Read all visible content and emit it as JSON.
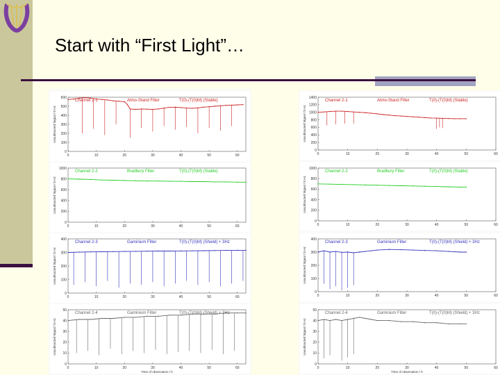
{
  "slide": {
    "title": "Start with “First Light”…"
  },
  "logo": {
    "icon": "lyre-logo-icon",
    "colors": {
      "accent": "#7b3fa0",
      "gold": "#d9c060"
    }
  },
  "theme": {
    "background": "#fffee9",
    "sidebar": "#c9c79b",
    "rule": "#3a1040",
    "rule_accent": "#a3a3c2"
  },
  "chart_data": [
    {
      "type": "line",
      "panel": "left-row1",
      "color": "#cc2222",
      "title": "Channel 2-1",
      "subtitle": "Atmo-Stand Filter",
      "note": "T(0)-(T(0)M) (Stable)",
      "ylabel": "Unsubtracted Signal / h Hz",
      "x": [
        0,
        2,
        4,
        6,
        8,
        10,
        12,
        14,
        16,
        18,
        20,
        21,
        22,
        24,
        26,
        28,
        30,
        32,
        34,
        36,
        38,
        40,
        42,
        44,
        46,
        48,
        50,
        52,
        54,
        56,
        58,
        60,
        62
      ],
      "y": [
        575,
        580,
        590,
        595,
        590,
        580,
        575,
        570,
        560,
        555,
        550,
        520,
        470,
        465,
        470,
        468,
        465,
        470,
        480,
        488,
        490,
        485,
        480,
        478,
        482,
        490,
        495,
        500,
        505,
        510,
        512,
        515,
        518
      ],
      "dips": [
        {
          "x": 5,
          "y": 200
        },
        {
          "x": 9,
          "y": 250
        },
        {
          "x": 13,
          "y": 180
        },
        {
          "x": 17,
          "y": 300
        },
        {
          "x": 22,
          "y": 150
        },
        {
          "x": 26,
          "y": 260
        },
        {
          "x": 30,
          "y": 220
        },
        {
          "x": 34,
          "y": 280
        },
        {
          "x": 38,
          "y": 240
        },
        {
          "x": 42,
          "y": 270
        },
        {
          "x": 46,
          "y": 200
        },
        {
          "x": 50,
          "y": 260
        },
        {
          "x": 54,
          "y": 230
        },
        {
          "x": 58,
          "y": 280
        }
      ],
      "xlim": [
        0,
        63
      ],
      "ylim": [
        0,
        600
      ],
      "xticks": [
        "0",
        "10",
        "20",
        "30",
        "40",
        "50",
        "60"
      ],
      "yticks": [
        "0",
        "100",
        "200",
        "300",
        "400",
        "500",
        "600"
      ]
    },
    {
      "type": "line",
      "panel": "right-row1",
      "color": "#cc2222",
      "title": "Channel 2-1",
      "subtitle": "Atmo-Stand Filter",
      "note": "T(0)-(T(0)M) (Stable)",
      "ylabel": "Unsubtracted Signal / h Hz",
      "x": [
        0,
        2,
        4,
        6,
        8,
        10,
        12,
        14,
        16,
        18,
        20,
        22,
        24,
        26,
        28,
        30,
        32,
        34,
        36,
        38,
        40,
        42,
        44,
        46,
        48,
        50
      ],
      "y": [
        1000,
        1010,
        1020,
        1030,
        1030,
        1020,
        1010,
        1000,
        990,
        975,
        960,
        940,
        925,
        910,
        900,
        890,
        880,
        870,
        860,
        850,
        845,
        840,
        835,
        830,
        830,
        830
      ],
      "dips": [
        {
          "x": 3,
          "y": 650
        },
        {
          "x": 6,
          "y": 680
        },
        {
          "x": 9,
          "y": 700
        },
        {
          "x": 12,
          "y": 700
        },
        {
          "x": 40,
          "y": 560
        },
        {
          "x": 41,
          "y": 600
        },
        {
          "x": 42,
          "y": 580
        }
      ],
      "xlim": [
        0,
        60
      ],
      "ylim": [
        0,
        1400
      ],
      "xticks": [
        "0",
        "10",
        "20",
        "30",
        "40",
        "50",
        "60"
      ],
      "yticks": [
        "0",
        "200",
        "400",
        "600",
        "800",
        "1000",
        "1200",
        "1400"
      ]
    },
    {
      "type": "line",
      "panel": "left-row2",
      "color": "#22cc22",
      "title": "Channel 2-2",
      "subtitle": "Bradbury Filter",
      "note": "T(0)-(T(0)M) (Stable)",
      "ylabel": "Unsubtracted Signal / h Hz",
      "x": [
        0,
        4,
        8,
        12,
        16,
        20,
        24,
        28,
        32,
        36,
        40,
        44,
        48,
        52,
        56,
        60,
        63
      ],
      "y": [
        800,
        795,
        790,
        780,
        775,
        770,
        765,
        760,
        760,
        755,
        755,
        750,
        750,
        745,
        745,
        740,
        740
      ],
      "dips": [],
      "xlim": [
        0,
        63
      ],
      "ylim": [
        0,
        1000
      ],
      "xticks": [
        "0",
        "10",
        "20",
        "30",
        "40",
        "50",
        "60"
      ],
      "yticks": [
        "0",
        "200",
        "400",
        "600",
        "800",
        "1000"
      ]
    },
    {
      "type": "line",
      "panel": "right-row2",
      "color": "#22cc22",
      "title": "Channel 2-2",
      "subtitle": "Bradbury Filter",
      "note": "T(0)-(T(0)M) (Stable)",
      "ylabel": "Unsubtracted Signal / h Hz",
      "x": [
        0,
        4,
        8,
        12,
        16,
        20,
        24,
        28,
        32,
        36,
        40,
        44,
        48,
        50
      ],
      "y": [
        700,
        695,
        690,
        685,
        680,
        675,
        670,
        665,
        660,
        655,
        650,
        645,
        640,
        640
      ],
      "dips": [],
      "xlim": [
        0,
        60
      ],
      "ylim": [
        0,
        1000
      ],
      "xticks": [
        "0",
        "10",
        "20",
        "30",
        "40",
        "50",
        "60"
      ],
      "yticks": [
        "0",
        "200",
        "400",
        "600",
        "800",
        "1000"
      ]
    },
    {
      "type": "line",
      "panel": "left-row3",
      "color": "#3333bb",
      "title": "Channel 2-3",
      "subtitle": "Gaminium Filter",
      "note": "T(0)-(T(0)M) (Shield) + 3Hz",
      "ylabel": "Unsubtracted Signal / h Hz",
      "x": [
        0,
        4,
        8,
        12,
        16,
        20,
        24,
        28,
        32,
        36,
        40,
        44,
        48,
        52,
        56,
        60,
        63
      ],
      "y": [
        300,
        302,
        304,
        305,
        306,
        307,
        308,
        309,
        310,
        310,
        311,
        312,
        313,
        314,
        315,
        316,
        316
      ],
      "dips": [
        {
          "x": 2,
          "y": 60
        },
        {
          "x": 6,
          "y": 80
        },
        {
          "x": 10,
          "y": 50
        },
        {
          "x": 14,
          "y": 90
        },
        {
          "x": 18,
          "y": 40
        },
        {
          "x": 22,
          "y": 70
        },
        {
          "x": 26,
          "y": 60
        },
        {
          "x": 30,
          "y": 80
        },
        {
          "x": 34,
          "y": 50
        },
        {
          "x": 38,
          "y": 70
        },
        {
          "x": 42,
          "y": 90
        },
        {
          "x": 46,
          "y": 60
        },
        {
          "x": 50,
          "y": 80
        },
        {
          "x": 54,
          "y": 50
        },
        {
          "x": 58,
          "y": 70
        },
        {
          "x": 62,
          "y": 90
        }
      ],
      "xlim": [
        0,
        63
      ],
      "ylim": [
        0,
        400
      ],
      "xticks": [
        "0",
        "10",
        "20",
        "30",
        "40",
        "50",
        "60"
      ],
      "yticks": [
        "0",
        "100",
        "200",
        "300",
        "400"
      ]
    },
    {
      "type": "line",
      "panel": "right-row3",
      "color": "#3333bb",
      "title": "Channel 2-3",
      "subtitle": "Gaminium Filter",
      "note": "T(0)-(T(0)M) (Shield) + 3Hz",
      "ylabel": "Unsubtracted Signal / h Hz",
      "x": [
        0,
        2,
        4,
        6,
        8,
        10,
        12,
        14,
        16,
        18,
        20,
        24,
        28,
        32,
        36,
        40,
        44,
        48,
        50
      ],
      "y": [
        300,
        310,
        300,
        305,
        298,
        300,
        295,
        300,
        305,
        310,
        315,
        320,
        318,
        315,
        312,
        310,
        305,
        300,
        300
      ],
      "dips": [
        {
          "x": 2,
          "y": 60
        },
        {
          "x": 4,
          "y": 20
        },
        {
          "x": 6,
          "y": 40
        },
        {
          "x": 8,
          "y": 10
        },
        {
          "x": 10,
          "y": 30
        },
        {
          "x": 12,
          "y": 50
        }
      ],
      "xlim": [
        0,
        60
      ],
      "ylim": [
        0,
        400
      ],
      "xticks": [
        "0",
        "10",
        "20",
        "30",
        "40",
        "50",
        "60"
      ],
      "yticks": [
        "0",
        "100",
        "200",
        "300",
        "400"
      ]
    },
    {
      "type": "line",
      "panel": "left-row4",
      "color": "#666666",
      "title": "Channel 2-4",
      "subtitle": "Gaminium Filter",
      "note": "T(0)-(T(0)M) (Shield) + 3Hz",
      "ylabel": "Unsubtracted Signal / h Hz",
      "xlabel": "Time of observation / h",
      "x": [
        0,
        4,
        8,
        12,
        16,
        20,
        24,
        28,
        32,
        36,
        40,
        44,
        48,
        52,
        56,
        60,
        63
      ],
      "y": [
        40,
        41,
        41,
        42,
        42,
        43,
        43,
        44,
        44,
        45,
        45,
        46,
        46,
        46,
        47,
        47,
        47
      ],
      "dips": [
        {
          "x": 3,
          "y": 10
        },
        {
          "x": 7,
          "y": 12
        },
        {
          "x": 11,
          "y": 8
        },
        {
          "x": 15,
          "y": 14
        },
        {
          "x": 19,
          "y": 9
        },
        {
          "x": 23,
          "y": 12
        },
        {
          "x": 27,
          "y": 10
        },
        {
          "x": 31,
          "y": 13
        },
        {
          "x": 35,
          "y": 9
        },
        {
          "x": 39,
          "y": 11
        },
        {
          "x": 43,
          "y": 12
        },
        {
          "x": 47,
          "y": 10
        },
        {
          "x": 51,
          "y": 13
        },
        {
          "x": 55,
          "y": 9
        },
        {
          "x": 59,
          "y": 12
        }
      ],
      "xlim": [
        0,
        63
      ],
      "ylim": [
        0,
        50
      ],
      "xticks": [
        "0",
        "10",
        "20",
        "30",
        "40",
        "50",
        "60"
      ],
      "yticks": [
        "0",
        "10",
        "20",
        "30",
        "40",
        "50"
      ]
    },
    {
      "type": "line",
      "panel": "right-row4",
      "color": "#666666",
      "title": "Channel 2-4",
      "subtitle": "Gaminium Filter",
      "note": "T(0)-(T(0)M) (Shield) + 3Hz",
      "ylabel": "Unsubtracted Signal / h Hz",
      "xlabel": "Time of observation / h",
      "x": [
        0,
        2,
        4,
        6,
        8,
        10,
        12,
        14,
        16,
        18,
        20,
        24,
        28,
        32,
        36,
        40,
        44,
        48,
        50
      ],
      "y": [
        40,
        41,
        40,
        41,
        40,
        41,
        42,
        43,
        42,
        41,
        40,
        40,
        39,
        39,
        38,
        38,
        37,
        37,
        37
      ],
      "dips": [
        {
          "x": 2,
          "y": 5
        },
        {
          "x": 4,
          "y": 8
        },
        {
          "x": 8,
          "y": 3
        },
        {
          "x": 10,
          "y": 6
        },
        {
          "x": 12,
          "y": 9
        }
      ],
      "xlim": [
        0,
        60
      ],
      "ylim": [
        0,
        50
      ],
      "xticks": [
        "0",
        "10",
        "20",
        "30",
        "40",
        "50",
        "60"
      ],
      "yticks": [
        "0",
        "10",
        "20",
        "30",
        "40",
        "50"
      ]
    }
  ]
}
